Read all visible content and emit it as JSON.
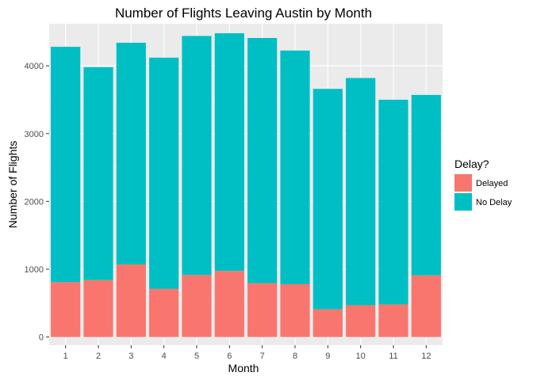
{
  "chart_data": {
    "type": "bar",
    "stacked": true,
    "title": "Number of Flights Leaving Austin by Month",
    "xlabel": "Month",
    "ylabel": "Number of Flights",
    "categories": [
      "1",
      "2",
      "3",
      "4",
      "5",
      "6",
      "7",
      "8",
      "9",
      "10",
      "11",
      "12"
    ],
    "series": [
      {
        "name": "Delayed",
        "color": "#F8766D",
        "values": [
          810,
          840,
          1070,
          710,
          915,
          975,
          795,
          780,
          410,
          470,
          480,
          910
        ]
      },
      {
        "name": "No Delay",
        "color": "#00BFC4",
        "values": [
          3470,
          3140,
          3270,
          3410,
          3525,
          3505,
          3615,
          3445,
          3250,
          3350,
          3020,
          2660
        ]
      }
    ],
    "yticks": [
      0,
      1000,
      2000,
      3000,
      4000
    ],
    "ylim": [
      -120,
      4620
    ],
    "grid": true,
    "legend": {
      "title": "Delay?",
      "position": "right"
    }
  }
}
